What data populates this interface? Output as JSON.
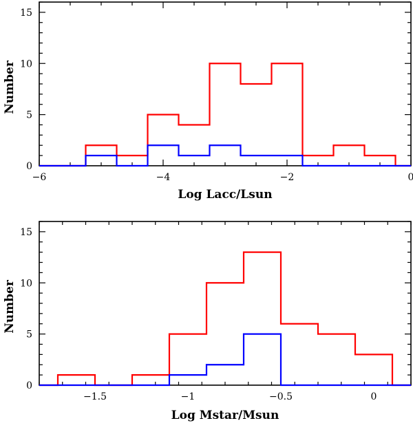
{
  "chart_data": [
    {
      "type": "histogram",
      "xlabel": "Log Lacc/Lsun",
      "ylabel": "Number",
      "xlim": [
        -6,
        0
      ],
      "ylim": [
        0,
        16
      ],
      "xticks": [
        -6,
        -4,
        -2,
        0
      ],
      "xtick_labels": [
        "−6",
        "−4",
        "−2",
        "0"
      ],
      "yticks": [
        0,
        5,
        10,
        15
      ],
      "ytick_labels": [
        "0",
        "5",
        "10",
        "15"
      ],
      "bin_edges": [
        -6.0,
        -5.25,
        -4.75,
        -4.25,
        -3.75,
        -3.25,
        -2.75,
        -2.25,
        -1.75,
        -1.25,
        -0.75,
        -0.25,
        0.0
      ],
      "series": [
        {
          "name": "red",
          "color": "#ff0000",
          "counts": [
            0,
            2,
            1,
            5,
            4,
            10,
            8,
            10,
            1,
            2,
            1,
            0
          ]
        },
        {
          "name": "blue",
          "color": "#0000ff",
          "counts": [
            0,
            1,
            0,
            2,
            1,
            2,
            1,
            1,
            0,
            0,
            0,
            0
          ]
        }
      ]
    },
    {
      "type": "histogram",
      "xlabel": "Log Mstar/Msun",
      "ylabel": "Number",
      "xlim": [
        -1.8,
        0.2
      ],
      "ylim": [
        0,
        16
      ],
      "xticks": [
        -1.5,
        -1.0,
        -0.5,
        0.0
      ],
      "xtick_labels": [
        "−1.5",
        "−1",
        "−0.5",
        "0"
      ],
      "yticks": [
        0,
        5,
        10,
        15
      ],
      "ytick_labels": [
        "0",
        "5",
        "10",
        "15"
      ],
      "bin_edges": [
        -1.8,
        -1.7,
        -1.5,
        -1.3,
        -1.1,
        -0.9,
        -0.7,
        -0.5,
        -0.3,
        -0.1,
        0.1,
        0.2
      ],
      "series": [
        {
          "name": "red",
          "color": "#ff0000",
          "counts": [
            0,
            1,
            0,
            1,
            5,
            10,
            13,
            6,
            5,
            3,
            0
          ]
        },
        {
          "name": "blue",
          "color": "#0000ff",
          "counts": [
            0,
            0,
            0,
            0,
            1,
            2,
            5,
            0,
            0,
            0,
            0
          ]
        }
      ]
    }
  ]
}
